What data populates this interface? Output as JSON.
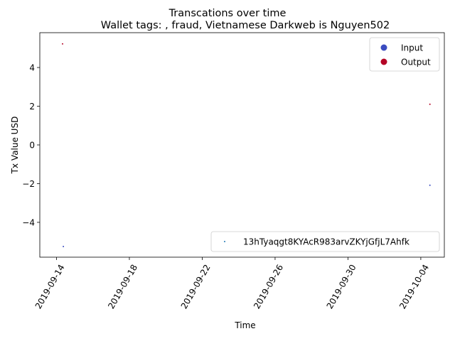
{
  "chart_data": {
    "type": "scatter",
    "suptitle": "Transcations over time",
    "title": "Wallet tags: , fraud, Vietnamese Darkweb is Nguyen502",
    "xlabel": "Time",
    "ylabel": "Tx Value USD",
    "xlim": [
      "2019-09-13T02:00:00",
      "2019-10-05T07:00:00"
    ],
    "ylim": [
      -5.8,
      5.8
    ],
    "x_ticks": [
      "2019-09-14",
      "2019-09-18",
      "2019-09-22",
      "2019-09-26",
      "2019-09-30",
      "2019-10-04"
    ],
    "y_ticks": [
      -4,
      -2,
      0,
      2,
      4
    ],
    "y_tick_labels": [
      "−4",
      "−2",
      "0",
      "2",
      "4"
    ],
    "series": [
      {
        "name": "Input",
        "color": "#3b4cc0",
        "points": [
          {
            "x": "2019-09-14T09:00:00",
            "y": -5.25
          },
          {
            "x": "2019-10-04T12:00:00",
            "y": -2.08
          }
        ]
      },
      {
        "name": "Output",
        "color": "#b40426",
        "points": [
          {
            "x": "2019-09-14T08:00:00",
            "y": 5.22
          },
          {
            "x": "2019-10-04T12:00:00",
            "y": 2.1
          }
        ]
      }
    ],
    "legends": [
      {
        "placement": "upper right",
        "entries": [
          {
            "label": "Input",
            "color": "#3b4cc0"
          },
          {
            "label": "Output",
            "color": "#b40426"
          }
        ]
      },
      {
        "placement": "lower right",
        "entries": [
          {
            "label": "13hTyaqgt8KYAcR983arvZKYjGfjL7Ahfk",
            "color": "#1f77b4"
          }
        ]
      }
    ],
    "grid": false
  }
}
